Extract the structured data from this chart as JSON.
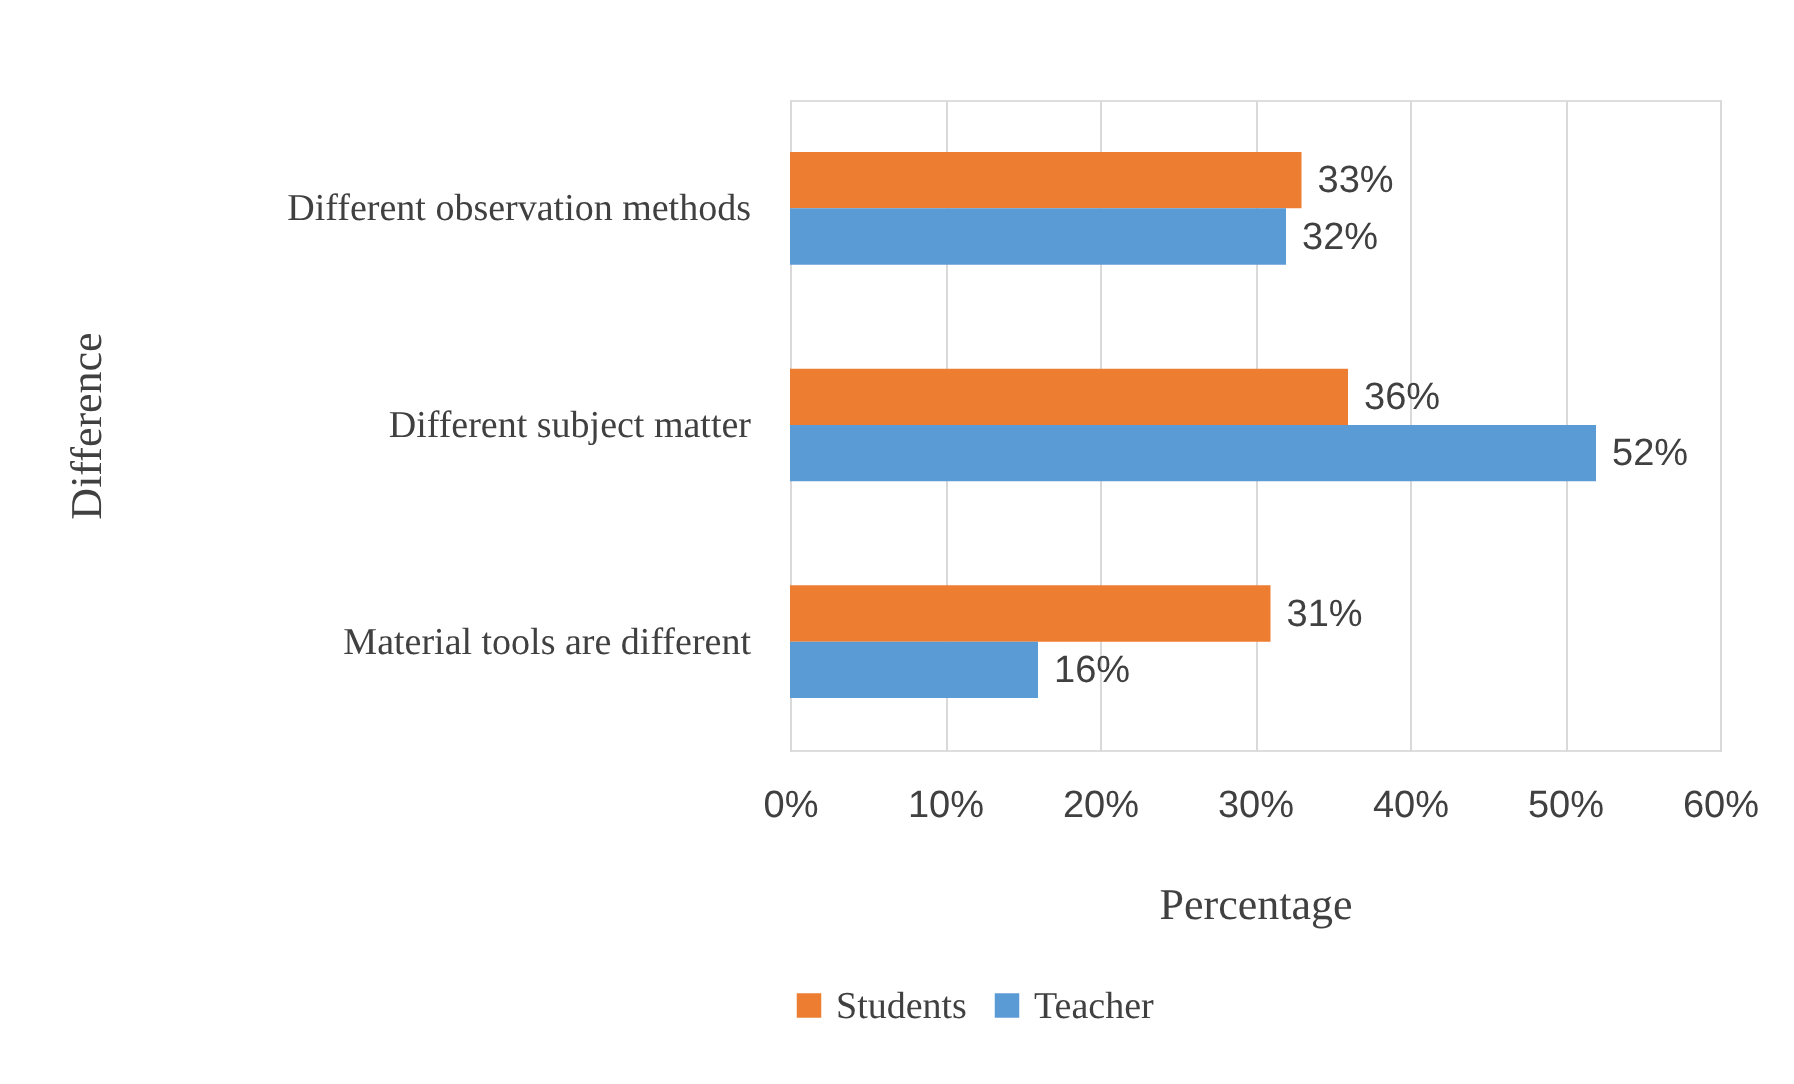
{
  "chart_data": {
    "type": "bar",
    "orientation": "horizontal",
    "xlabel": "Percentage",
    "ylabel": "Difference",
    "categories": [
      "Different observation methods",
      "Different subject matter",
      "Material tools are different"
    ],
    "series": [
      {
        "name": "Students",
        "color": "#ed7d31",
        "values": [
          33,
          36,
          31
        ],
        "value_labels": [
          "33%",
          "36%",
          "31%"
        ]
      },
      {
        "name": "Teacher",
        "color": "#5b9bd5",
        "values": [
          32,
          52,
          16
        ],
        "value_labels": [
          "32%",
          "52%",
          "16%"
        ]
      }
    ],
    "xlim": [
      0,
      60
    ],
    "xticks": [
      {
        "value": 0,
        "label": "0%"
      },
      {
        "value": 10,
        "label": "10%"
      },
      {
        "value": 20,
        "label": "20%"
      },
      {
        "value": 30,
        "label": "30%"
      },
      {
        "value": 40,
        "label": "40%"
      },
      {
        "value": 50,
        "label": "50%"
      },
      {
        "value": 60,
        "label": "60%"
      }
    ],
    "grid": "x",
    "legend": "bottom"
  }
}
